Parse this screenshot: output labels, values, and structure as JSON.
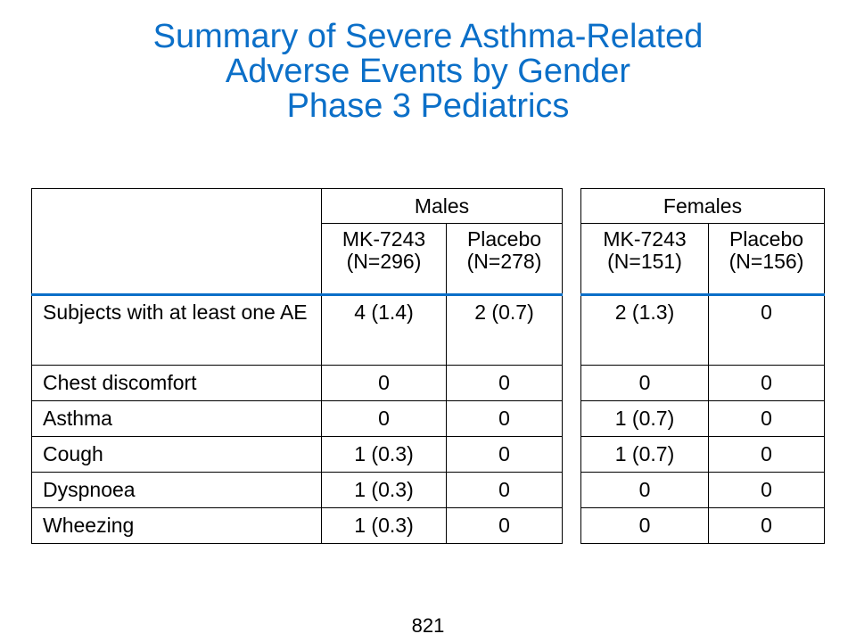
{
  "title": {
    "line1": "Summary of Severe Asthma-Related",
    "line2": "Adverse Events by Gender",
    "line3": "Phase 3 Pediatrics"
  },
  "table": {
    "groups": [
      "Males",
      "Females"
    ],
    "columns": [
      {
        "drug": "MK-7243",
        "n": "(N=296)"
      },
      {
        "drug": "Placebo",
        "n": "(N=278)"
      },
      {
        "drug": "MK-7243",
        "n": "(N=151)"
      },
      {
        "drug": "Placebo",
        "n": "(N=156)"
      }
    ],
    "rows": [
      {
        "label": "Subjects with at least one AE",
        "values": [
          "4 (1.4)",
          "2 (0.7)",
          "2 (1.3)",
          "0"
        ]
      },
      {
        "label": "Chest discomfort",
        "values": [
          "0",
          "0",
          "0",
          "0"
        ]
      },
      {
        "label": "Asthma",
        "values": [
          "0",
          "0",
          "1 (0.7)",
          "0"
        ]
      },
      {
        "label": "Cough",
        "values": [
          "1 (0.3)",
          "0",
          "1 (0.7)",
          "0"
        ]
      },
      {
        "label": "Dyspnoea",
        "values": [
          "1 (0.3)",
          "0",
          "0",
          "0"
        ]
      },
      {
        "label": "Wheezing",
        "values": [
          "1 (0.3)",
          "0",
          "0",
          "0"
        ]
      }
    ]
  },
  "page_number": "821",
  "colors": {
    "title": "#0b6fc8",
    "header_rule": "#0b6fc8"
  }
}
